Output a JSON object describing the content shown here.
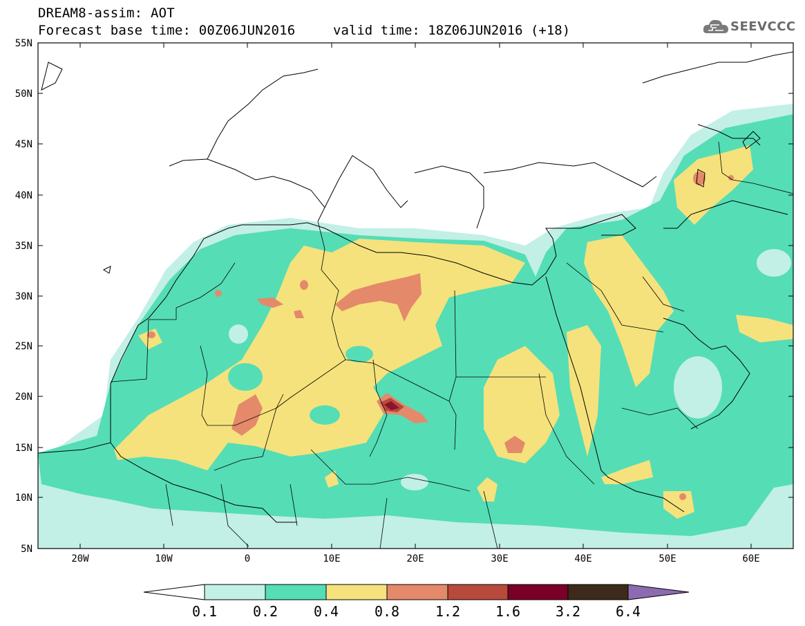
{
  "title": {
    "line1": "DREAM8-assim: AOT",
    "base_time": "Forecast base time: 00Z06JUN2016",
    "valid_time": "valid time: 18Z06JUN2016 (+18)"
  },
  "logo": {
    "text": "SEEVCCC",
    "icon": "cloud-icon"
  },
  "axes": {
    "lat_labels": [
      "55N",
      "50N",
      "45N",
      "40N",
      "35N",
      "30N",
      "25N",
      "20N",
      "15N",
      "10N",
      "5N"
    ],
    "lon_labels": [
      "20W",
      "10W",
      "0",
      "10E",
      "20E",
      "30E",
      "40E",
      "50E",
      "60E"
    ]
  },
  "colorbar": {
    "labels": [
      "0.1",
      "0.2",
      "0.4",
      "0.8",
      "1.2",
      "1.6",
      "3.2",
      "6.4"
    ],
    "colors": [
      "#ffffff",
      "#c2efe6",
      "#55ddb6",
      "#f5e27c",
      "#e5896b",
      "#b84a3c",
      "#7a0027",
      "#3e2a1a",
      "#8d6bb0"
    ]
  },
  "field_colors": {
    "land": "#ffffff",
    "aot_0_1_0_2": "#c2efe6",
    "aot_0_2_0_4": "#55ddb6",
    "aot_0_4_0_8": "#f5e27c",
    "aot_0_8_1_2": "#e5896b",
    "aot_1_2_1_6": "#b84a3c",
    "aot_1_6_3_2": "#7a0027"
  }
}
